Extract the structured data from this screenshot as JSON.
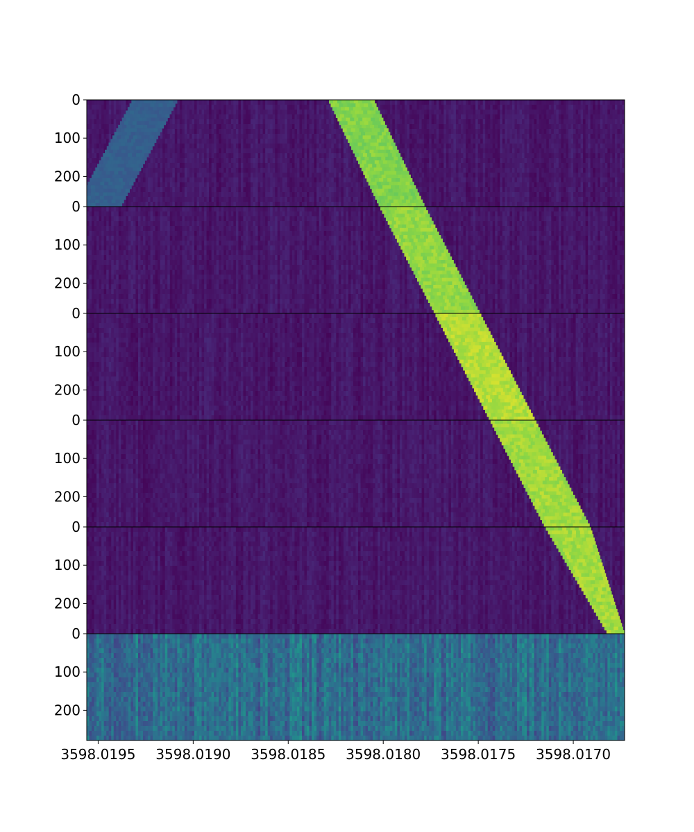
{
  "chart_data": {
    "type": "heatmap",
    "title": "",
    "xlabel": "",
    "ylabel": "",
    "colormap": "viridis",
    "grid": false,
    "x_axis": {
      "direction": "decreasing",
      "xlim": [
        3598.01956,
        3598.01673
      ],
      "ticks": [
        3598.0195,
        3598.019,
        3598.0185,
        3598.018,
        3598.0175,
        3598.017
      ],
      "tick_labels": [
        "3598.0195",
        "3598.0190",
        "3598.0185",
        "3598.0180",
        "3598.0175",
        "3598.0170"
      ]
    },
    "panel_y_range": [
      0,
      279
    ],
    "y_ticks": [
      0,
      100,
      200
    ],
    "y_tick_labels": [
      "0",
      "100",
      "200"
    ],
    "panels": [
      {
        "noise_level": 0.08,
        "signals": [
          {
            "x_start": [
              3598.01908,
              3598.01932
            ],
            "x_end": [
              3598.01938,
              3598.01962
            ],
            "level": 0.38
          },
          {
            "x_start": [
              3598.01805,
              3598.01829
            ],
            "x_end": [
              3598.01778,
              3598.01802
            ],
            "level": 0.86
          }
        ]
      },
      {
        "noise_level": 0.08,
        "signals": [
          {
            "x_start": [
              3598.01778,
              3598.01802
            ],
            "x_end": [
              3598.01749,
              3598.01773
            ],
            "level": 0.88
          }
        ]
      },
      {
        "noise_level": 0.08,
        "signals": [
          {
            "x_start": [
              3598.01749,
              3598.01773
            ],
            "x_end": [
              3598.0172,
              3598.01744
            ],
            "level": 0.92
          }
        ]
      },
      {
        "noise_level": 0.08,
        "signals": [
          {
            "x_start": [
              3598.0172,
              3598.01744
            ],
            "x_end": [
              3598.01691,
              3598.01715
            ],
            "level": 0.9
          }
        ]
      },
      {
        "noise_level": 0.08,
        "signals": [
          {
            "x_start": [
              3598.01691,
              3598.01715
            ],
            "x_end": [
              3598.01673,
              3598.01682
            ],
            "level": 0.9
          }
        ]
      },
      {
        "noise_level": 0.45,
        "signals": []
      }
    ]
  }
}
